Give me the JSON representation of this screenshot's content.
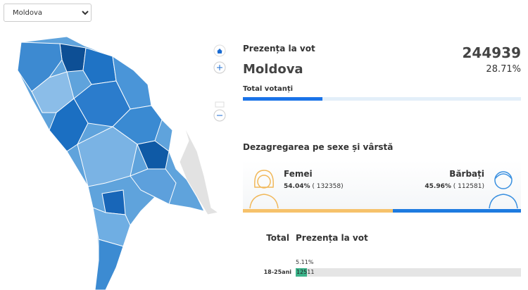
{
  "selector": {
    "value": "Moldova"
  },
  "summary": {
    "title": "Prezența la vot",
    "total": "244939",
    "region": "Moldova",
    "turnout": {
      "value": 28.71,
      "label": "28.71%"
    },
    "bar_label": "Total votanți"
  },
  "gender": {
    "title": "Dezagregarea pe sexe și vârstă",
    "women": {
      "label": "Femei",
      "percent": {
        "value": 54.04,
        "label": "54.04%"
      },
      "count": "( 132358)"
    },
    "men": {
      "label": "Bărbați",
      "percent": {
        "value": 45.96,
        "label": "45.96%"
      },
      "count": "( 112581)"
    }
  },
  "age": {
    "header_total": "Total",
    "header_turnout": "Prezența la vot",
    "rows": [
      {
        "group": "18-25ani",
        "percent": {
          "value": 5.11,
          "label": "5.11%"
        },
        "total": "12511"
      }
    ]
  }
}
